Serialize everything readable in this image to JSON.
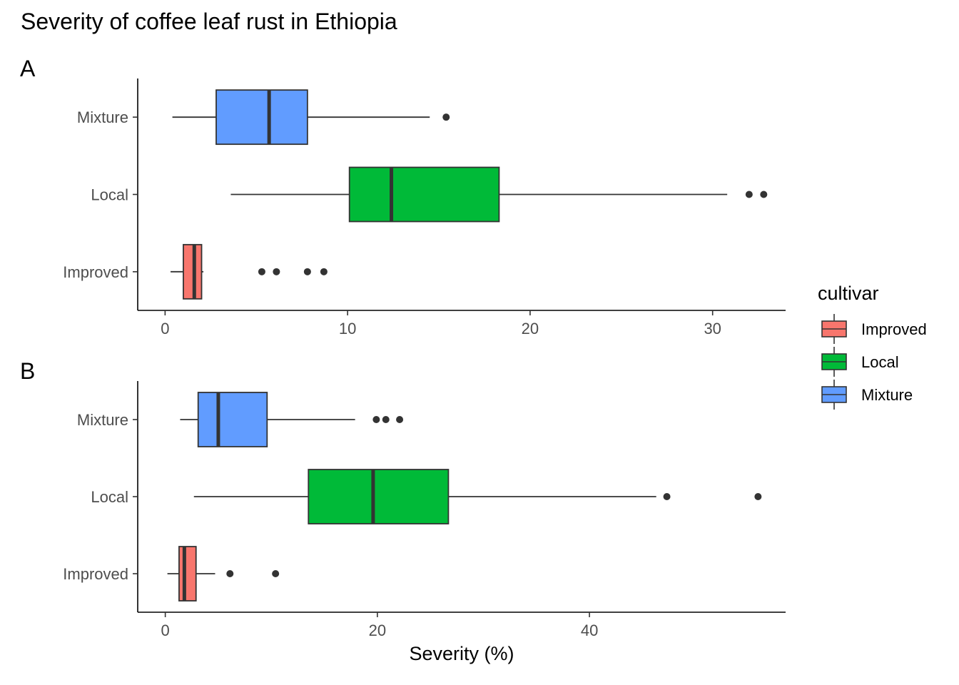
{
  "title": "Severity of coffee leaf rust in Ethiopia",
  "legend": {
    "title": "cultivar",
    "position": "right",
    "entries": [
      {
        "label": "Improved",
        "color": "#F8766D"
      },
      {
        "label": "Local",
        "color": "#00BA38"
      },
      {
        "label": "Mixture",
        "color": "#619CFF"
      }
    ]
  },
  "chart_data": [
    {
      "type": "boxplot",
      "orientation": "horizontal",
      "panel": "A",
      "xlabel": "",
      "xlim": [
        -1.5,
        34
      ],
      "xticks": [
        0,
        10,
        20,
        30
      ],
      "categories": [
        "Improved",
        "Local",
        "Mixture"
      ],
      "series": [
        {
          "name": "Improved",
          "color": "#F8766D",
          "min": 0.3,
          "q1": 1.0,
          "median": 1.6,
          "q3": 2.0,
          "max": 2.1,
          "outliers": [
            5.3,
            6.1,
            7.8,
            8.7
          ]
        },
        {
          "name": "Local",
          "color": "#00BA38",
          "min": 3.6,
          "q1": 10.1,
          "median": 12.4,
          "q3": 18.3,
          "max": 30.8,
          "outliers": [
            32.0,
            32.8
          ]
        },
        {
          "name": "Mixture",
          "color": "#619CFF",
          "min": 0.4,
          "q1": 2.8,
          "median": 5.7,
          "q3": 7.8,
          "max": 14.5,
          "outliers": [
            15.4
          ]
        }
      ]
    },
    {
      "type": "boxplot",
      "orientation": "horizontal",
      "panel": "B",
      "xlabel": "Severity (%)",
      "xlim": [
        -2.6,
        58.5
      ],
      "xticks": [
        0,
        20,
        40
      ],
      "categories": [
        "Improved",
        "Local",
        "Mixture"
      ],
      "series": [
        {
          "name": "Improved",
          "color": "#F8766D",
          "min": 0.2,
          "q1": 1.3,
          "median": 1.8,
          "q3": 2.9,
          "max": 4.7,
          "outliers": [
            6.1,
            10.4
          ]
        },
        {
          "name": "Local",
          "color": "#00BA38",
          "min": 2.7,
          "q1": 13.5,
          "median": 19.6,
          "q3": 26.7,
          "max": 46.3,
          "outliers": [
            47.3,
            55.9
          ]
        },
        {
          "name": "Mixture",
          "color": "#619CFF",
          "min": 1.4,
          "q1": 3.1,
          "median": 5.0,
          "q3": 9.6,
          "max": 17.9,
          "outliers": [
            19.9,
            20.8,
            22.1
          ]
        }
      ]
    }
  ]
}
